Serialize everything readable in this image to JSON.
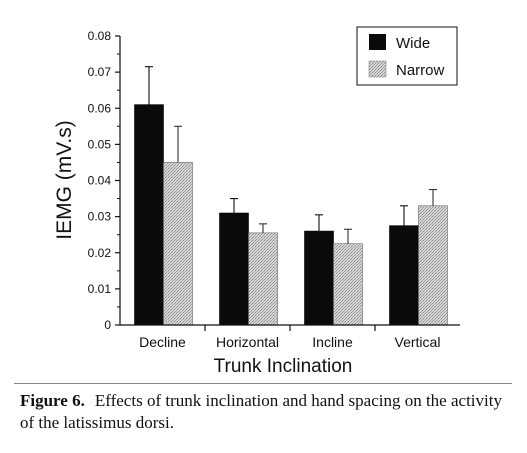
{
  "chart_data": {
    "type": "bar",
    "title": "",
    "xlabel": "Trunk Inclination",
    "ylabel": "IEMG (mV.s)",
    "ylim": [
      0,
      0.08
    ],
    "yticks": [
      "0",
      "0.01",
      "0.02",
      "0.03",
      "0.04",
      "0.05",
      "0.06",
      "0.07",
      "0.08"
    ],
    "categories": [
      "Decline",
      "Horizontal",
      "Incline",
      "Vertical"
    ],
    "legend_position": "top-right",
    "grid": false,
    "series": [
      {
        "name": "Wide",
        "color": "#0a0a0a",
        "values": [
          0.061,
          0.031,
          0.026,
          0.0275
        ],
        "errors": [
          0.0105,
          0.004,
          0.0045,
          0.0055
        ]
      },
      {
        "name": "Narrow",
        "color": "#c8c8c8",
        "values": [
          0.045,
          0.0255,
          0.0225,
          0.033
        ],
        "errors": [
          0.01,
          0.0025,
          0.004,
          0.0045
        ]
      }
    ]
  },
  "caption": {
    "label": "Figure 6.",
    "text": "Effects of trunk inclination and hand spacing on the activity of the latissimus dorsi."
  }
}
